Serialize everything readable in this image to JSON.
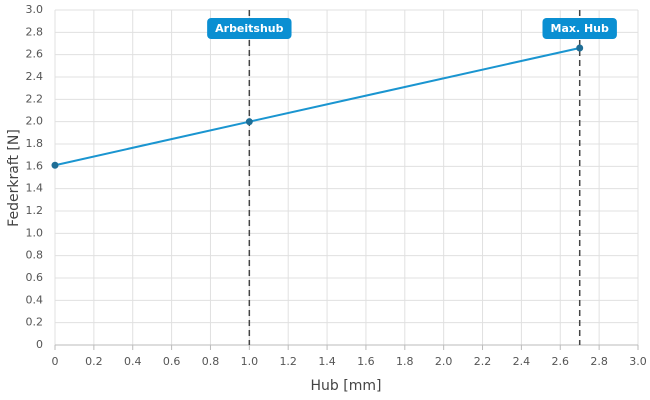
{
  "chart_data": {
    "type": "line",
    "x_label": "Hub [mm]",
    "y_label": "Federkraft [N]",
    "x": [
      0,
      1,
      2.7
    ],
    "series": [
      {
        "name": "Federkraft",
        "color": "#1a95d0",
        "values": [
          1.61,
          2.0,
          2.66
        ]
      }
    ],
    "xlim": [
      0,
      3
    ],
    "ylim": [
      0,
      3
    ],
    "xticks": [
      0,
      0.2,
      0.4,
      0.6,
      0.8,
      {
        "value": 1,
        "label": "1.0"
      },
      1.2,
      1.4,
      1.6,
      1.8,
      {
        "value": 2,
        "label": "2.0"
      },
      2.2,
      2.4,
      2.6,
      2.8,
      {
        "value": 3,
        "label": "3.0"
      }
    ],
    "yticks": [
      0,
      0.2,
      0.4,
      0.6,
      0.8,
      {
        "value": 1,
        "label": "1.0"
      },
      1.2,
      1.4,
      1.6,
      1.8,
      {
        "value": 2,
        "label": "2.0"
      },
      2.2,
      2.4,
      2.6,
      2.8,
      {
        "value": 3,
        "label": "3.0"
      }
    ],
    "grid": true,
    "markers": [
      {
        "x": 1,
        "label": "Arbeitshub"
      },
      {
        "x": 2.7,
        "label": "Max. Hub"
      }
    ],
    "marker_color": "#0a8fd2"
  }
}
